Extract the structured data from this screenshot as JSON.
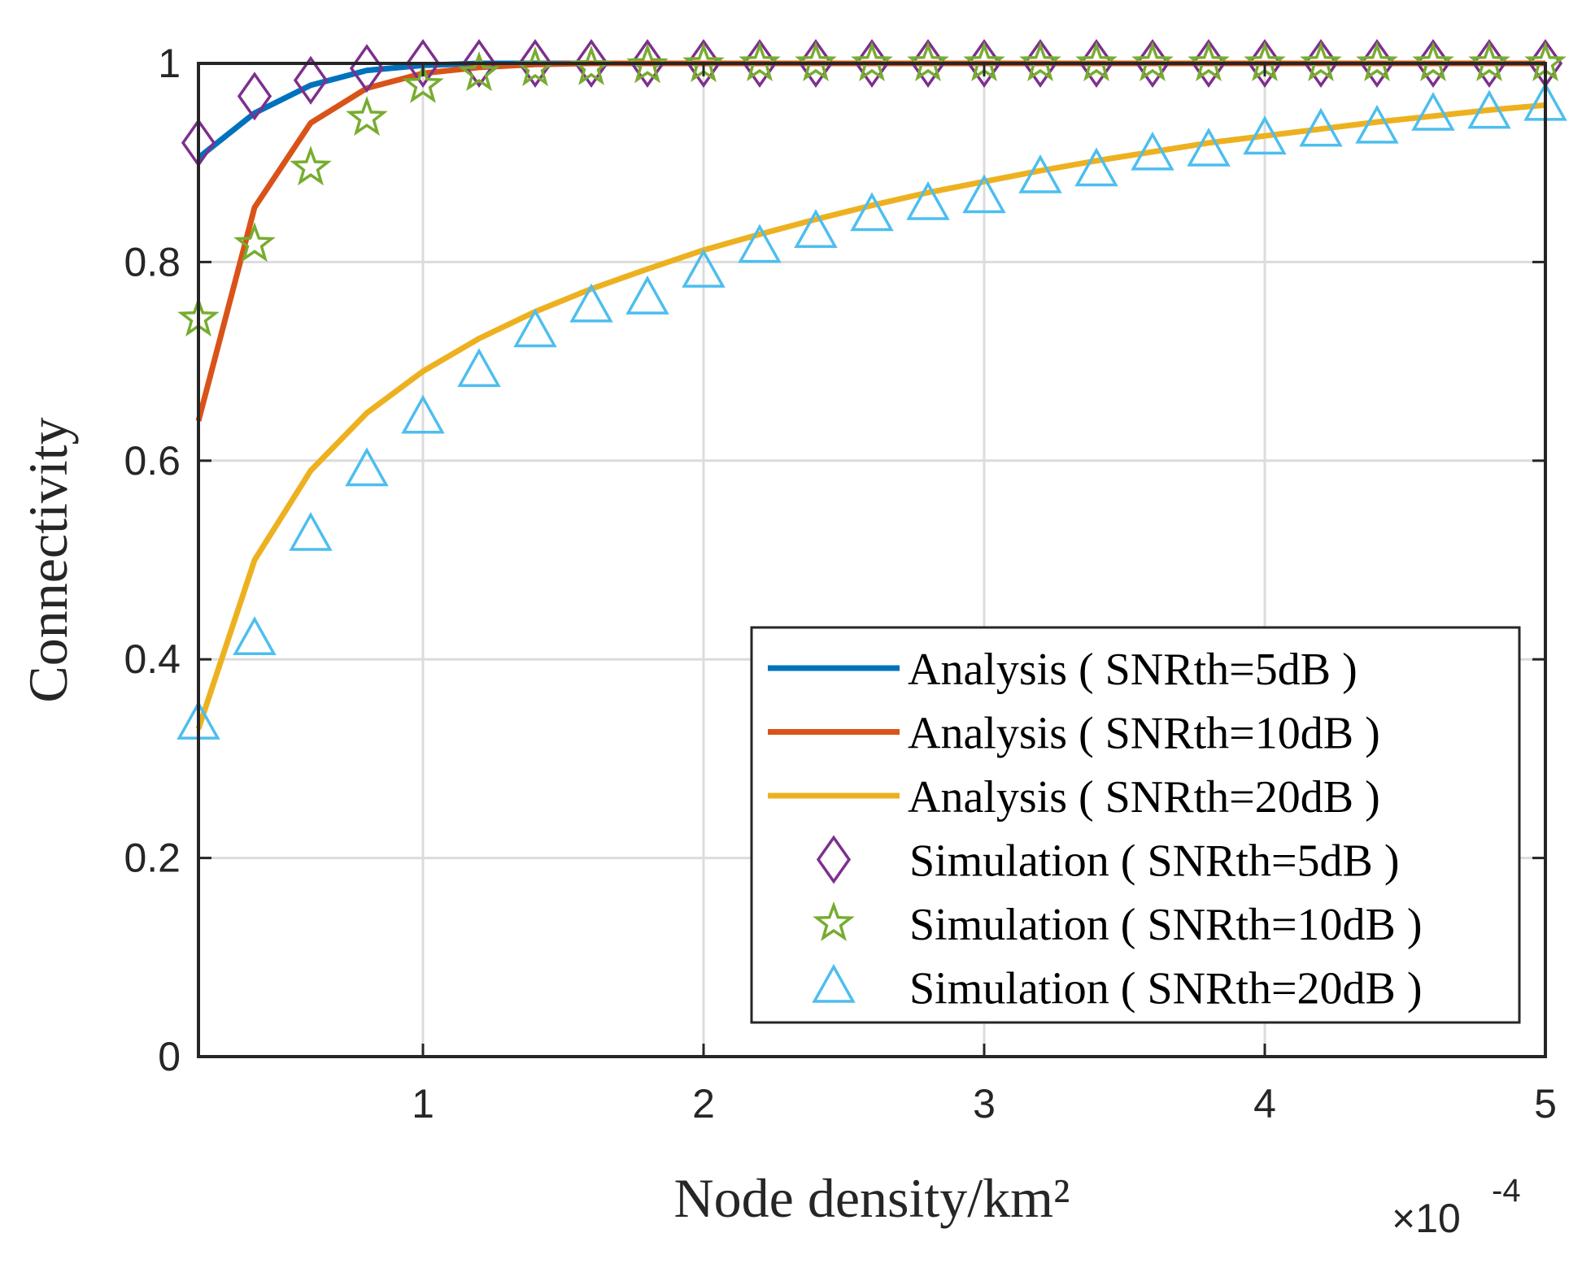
{
  "chart_data": {
    "type": "line",
    "title": "",
    "xlabel": "Node density/km²",
    "ylabel": "Connectivity",
    "x_exponent_label": "×10",
    "x_exponent_power": "-4",
    "xlim": [
      0.2,
      5
    ],
    "ylim": [
      0,
      1
    ],
    "xticks": [
      1,
      2,
      3,
      4,
      5
    ],
    "yticks": [
      0,
      0.2,
      0.4,
      0.6,
      0.8,
      1
    ],
    "xtick_labels": [
      "1",
      "2",
      "3",
      "4",
      "5"
    ],
    "ytick_labels": [
      "0",
      "0.2",
      "0.4",
      "0.6",
      "0.8",
      "1"
    ],
    "grid": true,
    "legend_position": "bottom-right",
    "x": [
      0.2,
      0.4,
      0.6,
      0.8,
      1.0,
      1.2,
      1.4,
      1.6,
      1.8,
      2.0,
      2.2,
      2.4,
      2.6,
      2.8,
      3.0,
      3.2,
      3.4,
      3.6,
      3.8,
      4.0,
      4.2,
      4.4,
      4.6,
      4.8,
      5.0
    ],
    "series": [
      {
        "name": "Analysis ( SNRth=5dB )",
        "kind": "line",
        "color": "#0072BD",
        "values": [
          0.905,
          0.95,
          0.978,
          0.993,
          0.998,
          1.0,
          1.0,
          1.0,
          1.0,
          1.0,
          1.0,
          1.0,
          1.0,
          1.0,
          1.0,
          1.0,
          1.0,
          1.0,
          1.0,
          1.0,
          1.0,
          1.0,
          1.0,
          1.0,
          1.0
        ]
      },
      {
        "name": "Analysis ( SNRth=10dB )",
        "kind": "line",
        "color": "#D95319",
        "values": [
          0.64,
          0.855,
          0.94,
          0.975,
          0.99,
          0.996,
          0.999,
          1.0,
          1.0,
          1.0,
          1.0,
          1.0,
          1.0,
          1.0,
          1.0,
          1.0,
          1.0,
          1.0,
          1.0,
          1.0,
          1.0,
          1.0,
          1.0,
          1.0,
          1.0
        ]
      },
      {
        "name": "Analysis ( SNRth=20dB )",
        "kind": "line",
        "color": "#EDB120",
        "values": [
          0.33,
          0.5,
          0.59,
          0.648,
          0.69,
          0.723,
          0.75,
          0.773,
          0.793,
          0.812,
          0.828,
          0.843,
          0.857,
          0.87,
          0.881,
          0.892,
          0.902,
          0.911,
          0.92,
          0.927,
          0.934,
          0.941,
          0.947,
          0.953,
          0.958
        ]
      },
      {
        "name": "Simulation ( SNRth=5dB )",
        "kind": "marker",
        "marker": "diamond",
        "color": "#7E2F8E",
        "values": [
          0.92,
          0.967,
          0.983,
          0.995,
          1.0,
          1.0,
          1.0,
          1.0,
          1.0,
          1.0,
          1.0,
          1.0,
          1.0,
          1.0,
          1.0,
          1.0,
          1.0,
          1.0,
          1.0,
          1.0,
          1.0,
          1.0,
          1.0,
          1.0,
          1.0
        ]
      },
      {
        "name": "Simulation ( SNRth=10dB )",
        "kind": "marker",
        "marker": "star",
        "color": "#77AC30",
        "values": [
          0.743,
          0.818,
          0.895,
          0.945,
          0.978,
          0.99,
          0.995,
          0.996,
          0.998,
          0.999,
          1.0,
          1.0,
          1.0,
          1.0,
          1.0,
          1.0,
          1.0,
          1.0,
          1.0,
          1.0,
          1.0,
          1.0,
          1.0,
          1.0,
          1.0
        ]
      },
      {
        "name": "Simulation ( SNRth=20dB )",
        "kind": "marker",
        "marker": "triangle",
        "color": "#4DBEEE",
        "values": [
          0.335,
          0.42,
          0.525,
          0.59,
          0.643,
          0.69,
          0.73,
          0.755,
          0.763,
          0.79,
          0.815,
          0.83,
          0.847,
          0.858,
          0.865,
          0.885,
          0.892,
          0.908,
          0.912,
          0.924,
          0.932,
          0.935,
          0.948,
          0.95,
          0.958
        ]
      }
    ]
  }
}
